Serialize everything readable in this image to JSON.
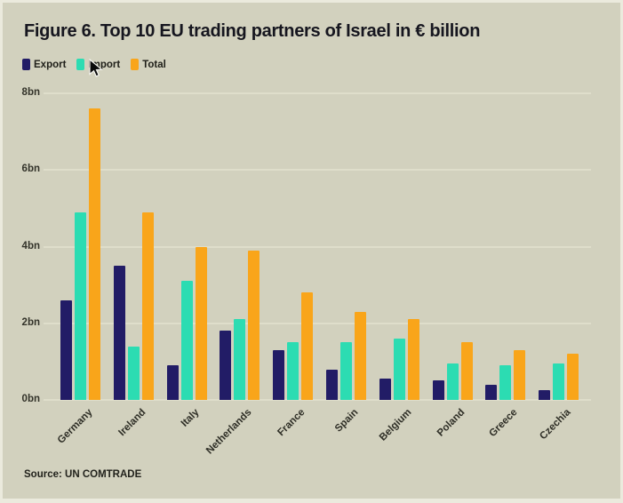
{
  "figure": {
    "title": "Figure 6. Top 10 EU trading partners of Israel in € billion",
    "source": "Source: UN COMTRADE"
  },
  "colors": {
    "background": "#d2d1be",
    "gridline": "#dfdecb",
    "export": "#221c66",
    "import": "#2cdcb2",
    "total": "#f9a51a"
  },
  "chart_data": {
    "type": "bar",
    "title": "Figure 6. Top 10 EU trading partners of Israel in € billion",
    "source": "Source: UN COMTRADE",
    "categories": [
      "Germany",
      "Ireland",
      "Italy",
      "Netherlands",
      "France",
      "Spain",
      "Belgium",
      "Poland",
      "Greece",
      "Czechia"
    ],
    "series": [
      {
        "name": "Export",
        "color": "#221c66",
        "values": [
          2.6,
          3.5,
          0.9,
          1.8,
          1.3,
          0.8,
          0.55,
          0.5,
          0.4,
          0.25
        ]
      },
      {
        "name": "Import",
        "color": "#2cdcb2",
        "values": [
          4.9,
          1.4,
          3.1,
          2.1,
          1.5,
          1.5,
          1.6,
          0.95,
          0.9,
          0.95
        ]
      },
      {
        "name": "Total",
        "color": "#f9a51a",
        "values": [
          7.6,
          4.9,
          4.0,
          3.9,
          2.8,
          2.3,
          2.1,
          1.5,
          1.3,
          1.2
        ]
      }
    ],
    "ylabel": "",
    "xlabel": "",
    "ylim": [
      0,
      8
    ],
    "yticks": [
      {
        "value": 0,
        "label": "0bn"
      },
      {
        "value": 2,
        "label": "2bn"
      },
      {
        "value": 4,
        "label": "4bn"
      },
      {
        "value": 6,
        "label": "6bn"
      },
      {
        "value": 8,
        "label": "8bn"
      }
    ],
    "grid": true,
    "legend_position": "top-left"
  }
}
